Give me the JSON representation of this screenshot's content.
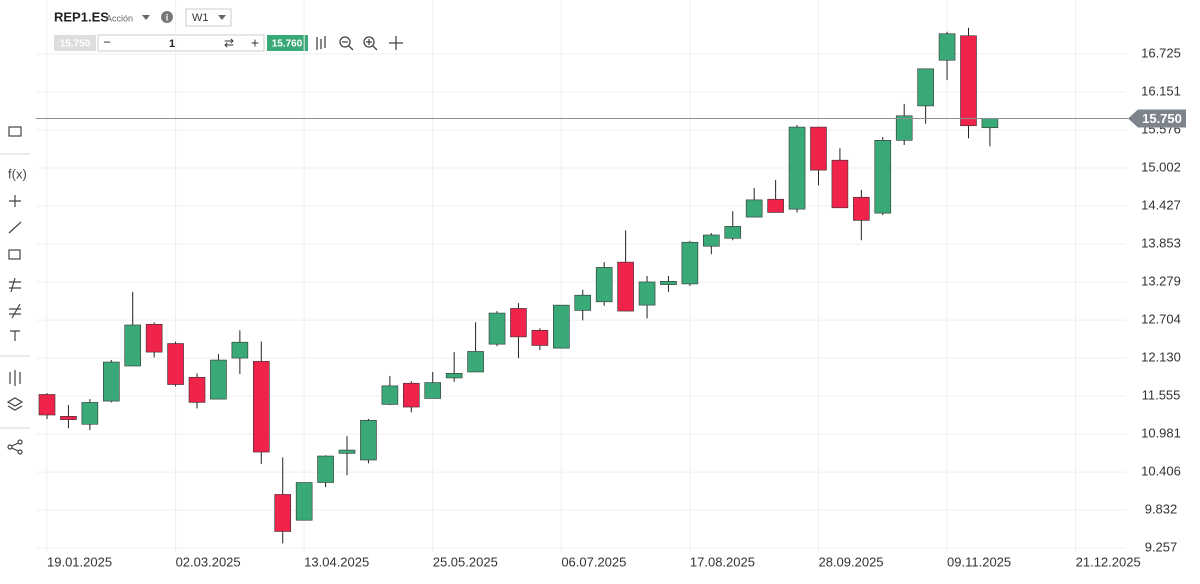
{
  "toolbar": {
    "symbol": "REP1.ES",
    "kind": "Acción",
    "timeframe": "W1",
    "sell_price": "15.750",
    "quantity": "1",
    "buy_price": "15.760"
  },
  "chart_data": {
    "type": "candlestick",
    "categories": [
      "19.01.2025",
      null,
      null,
      null,
      null,
      null,
      "02.03.2025",
      null,
      null,
      null,
      null,
      null,
      "13.04.2025",
      null,
      null,
      null,
      null,
      null,
      "25.05.2025",
      null,
      null,
      null,
      null,
      null,
      "06.07.2025",
      null,
      null,
      null,
      null,
      null,
      "17.08.2025",
      null,
      null,
      null,
      null,
      null,
      "28.09.2025",
      null,
      null,
      null,
      null,
      null,
      "09.11.2025",
      null,
      null,
      null,
      null,
      null,
      "21.12.2025"
    ],
    "open": [
      11.58,
      11.25,
      11.13,
      11.48,
      12.01,
      12.64,
      12.35,
      11.84,
      11.51,
      12.13,
      12.08,
      10.07,
      9.68,
      10.25,
      10.69,
      10.59,
      11.43,
      11.75,
      11.52,
      11.83,
      11.92,
      12.34,
      12.88,
      12.55,
      12.28,
      12.85,
      12.98,
      13.58,
      12.93,
      13.24,
      13.25,
      13.82,
      13.94,
      14.26,
      14.53,
      14.38,
      15.62,
      15.12,
      14.56,
      14.32,
      15.42,
      15.94,
      16.63,
      17.0,
      15.61,
      null,
      null,
      null,
      null
    ],
    "high": [
      11.6,
      11.42,
      11.51,
      12.1,
      13.13,
      12.67,
      12.38,
      11.9,
      12.19,
      12.55,
      12.38,
      10.63,
      10.25,
      10.66,
      10.95,
      11.21,
      11.86,
      11.78,
      11.92,
      12.22,
      12.67,
      12.84,
      12.96,
      12.58,
      12.93,
      13.16,
      13.58,
      14.06,
      13.37,
      13.37,
      13.9,
      14.02,
      14.35,
      14.7,
      14.82,
      15.65,
      15.62,
      15.3,
      14.67,
      15.47,
      15.97,
      16.5,
      17.06,
      17.12,
      15.75,
      null,
      null,
      null,
      null
    ],
    "low": [
      11.21,
      11.07,
      11.04,
      11.46,
      12.01,
      12.14,
      11.7,
      11.37,
      11.51,
      11.89,
      10.53,
      9.33,
      9.68,
      10.18,
      10.36,
      10.54,
      11.42,
      11.31,
      11.52,
      11.77,
      11.92,
      12.31,
      12.13,
      12.25,
      12.28,
      12.7,
      12.92,
      12.84,
      12.73,
      13.13,
      13.22,
      13.7,
      13.91,
      14.26,
      14.33,
      14.33,
      14.74,
      14.4,
      13.91,
      14.29,
      15.35,
      15.67,
      16.33,
      15.45,
      15.33,
      null,
      null,
      null,
      null
    ],
    "close": [
      11.27,
      11.2,
      11.46,
      12.07,
      12.63,
      12.22,
      11.73,
      11.46,
      12.1,
      12.37,
      10.71,
      9.51,
      10.25,
      10.65,
      10.74,
      11.19,
      11.71,
      11.39,
      11.76,
      11.9,
      12.23,
      12.81,
      12.45,
      12.32,
      12.93,
      13.08,
      13.5,
      12.84,
      13.28,
      13.29,
      13.88,
      13.99,
      14.12,
      14.52,
      14.33,
      15.62,
      14.97,
      14.4,
      14.21,
      15.42,
      15.79,
      16.5,
      17.03,
      15.64,
      15.75,
      null,
      null,
      null,
      null
    ],
    "up_color": "#3aa978",
    "down_color": "#f0234a",
    "last_price": {
      "value": 15.75,
      "label": "15.750"
    },
    "ylim": [
      9.2,
      17.54
    ],
    "yticks": [
      9.257,
      9.832,
      10.406,
      10.981,
      11.555,
      {
        "value": 12.13,
        "label": "12.130"
      },
      12.704,
      13.279,
      13.853,
      14.427,
      15.002,
      15.576,
      16.151,
      16.725
    ],
    "grid": true
  }
}
